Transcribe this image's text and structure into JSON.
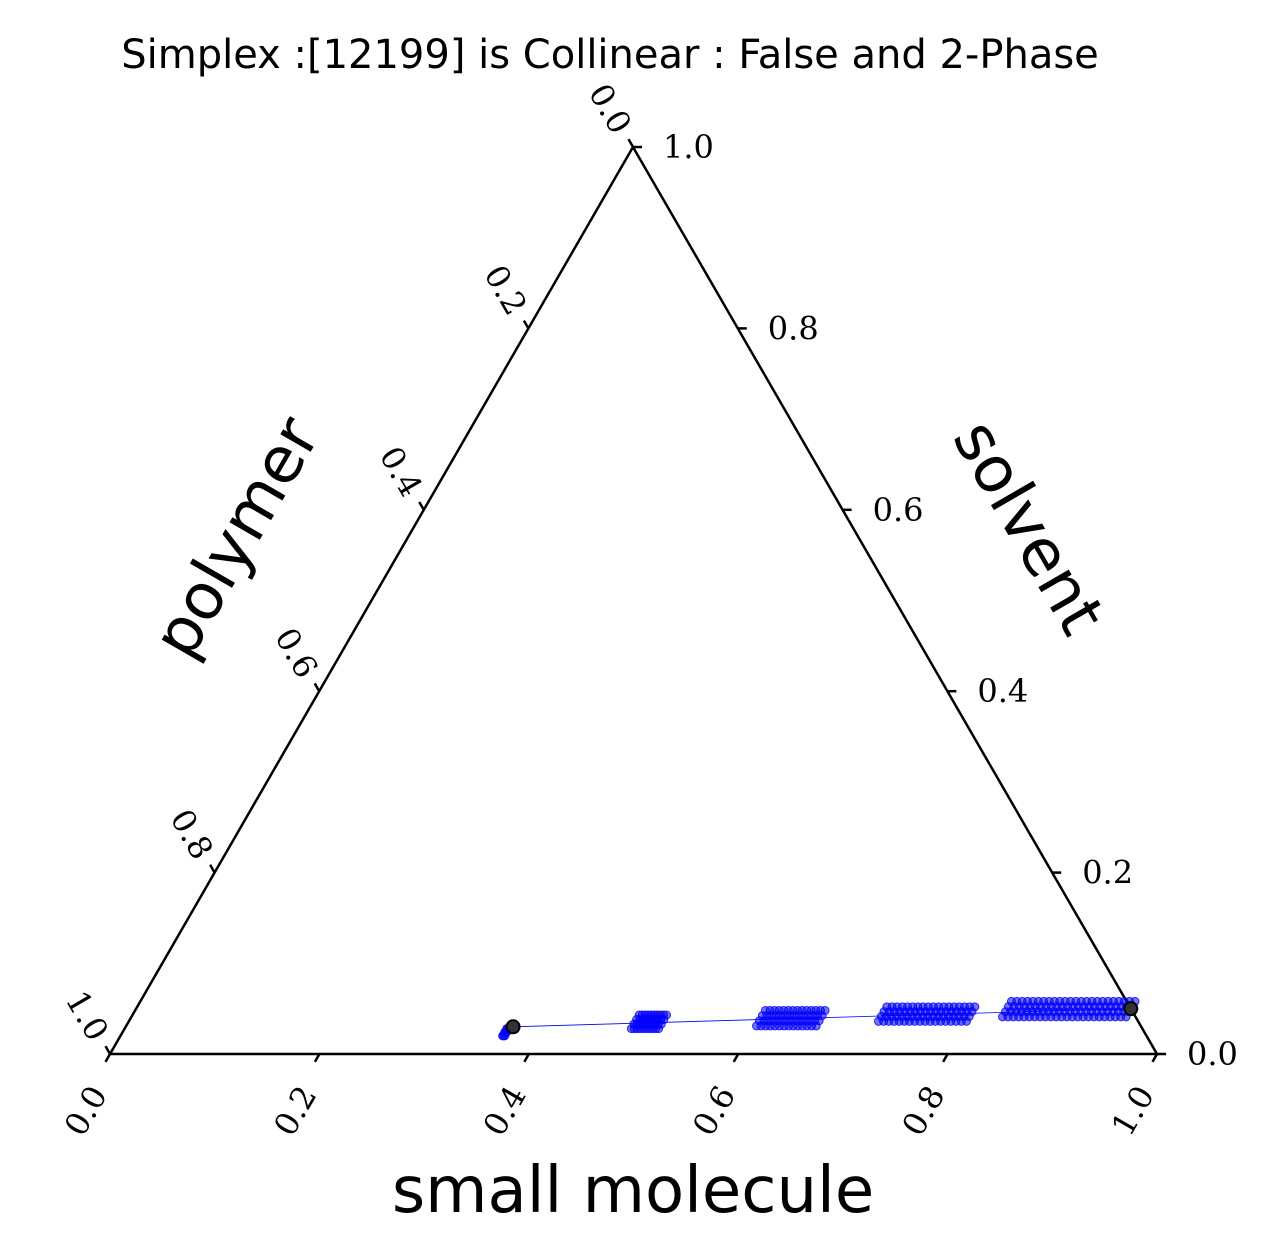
{
  "chart_data": {
    "type": "scatter",
    "subtype": "ternary",
    "title": "Simplex :[12199] is Collinear : False and 2-Phase",
    "axes": {
      "bottom": {
        "label": "small molecule",
        "ticks": [
          "0.0",
          "0.2",
          "0.4",
          "0.6",
          "0.8",
          "1.0"
        ]
      },
      "left": {
        "label": "polymer",
        "ticks": [
          "0.0",
          "0.2",
          "0.4",
          "0.6",
          "0.8",
          "1.0"
        ]
      },
      "right": {
        "label": "solvent",
        "ticks": [
          "0.0",
          "0.2",
          "0.4",
          "0.6",
          "0.8",
          "1.0"
        ]
      }
    },
    "ylim": [
      0,
      1
    ],
    "grid": false,
    "colors": {
      "line": "#0000ff",
      "points": "#0000ff",
      "endpoints": "#000000"
    },
    "tie_line": {
      "start": {
        "small_molecule": 0.37,
        "polymer": 0.6,
        "solvent": 0.03
      },
      "end": {
        "small_molecule": 0.95,
        "polymer": 0.0,
        "solvent": 0.05
      }
    },
    "endpoints": [
      {
        "small_molecule": 0.37,
        "solvent": 0.03
      },
      {
        "small_molecule": 0.95,
        "solvent": 0.05
      }
    ],
    "series": [
      {
        "clusters": [
          {
            "small_molecule_range": [
              0.365,
              0.367
            ],
            "solvent_range": [
              0.02,
              0.028
            ],
            "n": 3
          },
          {
            "small_molecule_range": [
              0.484,
              0.51
            ],
            "solvent_range": [
              0.028,
              0.043
            ],
            "n": 10
          },
          {
            "small_molecule_range": [
              0.602,
              0.659
            ],
            "solvent_range": [
              0.031,
              0.048
            ],
            "n": 14
          },
          {
            "small_molecule_range": [
              0.716,
              0.8
            ],
            "solvent_range": [
              0.036,
              0.052
            ],
            "n": 18
          },
          {
            "small_molecule_range": [
              0.832,
              0.95
            ],
            "solvent_range": [
              0.041,
              0.058
            ],
            "n": 24
          }
        ]
      }
    ]
  }
}
